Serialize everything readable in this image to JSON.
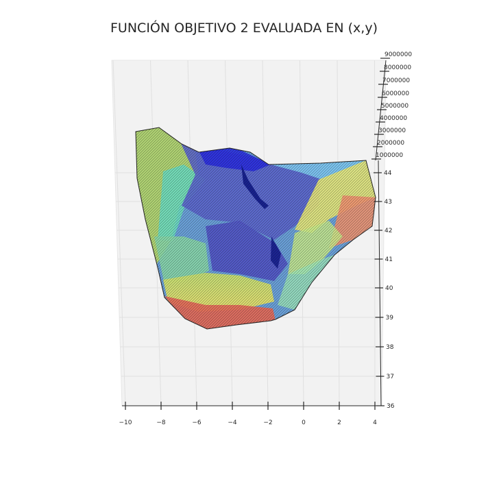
{
  "chart_data": {
    "type": "surface",
    "title": "FUNCIÓN OBJETIVO 2 EVALUADA EN (x,y)",
    "xlabel": "",
    "ylabel": "",
    "zlabel": "",
    "x_ticks": [
      "−10",
      "−8",
      "−6",
      "−4",
      "−2",
      "0",
      "2",
      "4"
    ],
    "y_ticks": [
      "36",
      "37",
      "38",
      "39",
      "40",
      "41",
      "42",
      "43",
      "44"
    ],
    "z_ticks": [
      "1000000",
      "2000000",
      "3000000",
      "4000000",
      "5000000",
      "6000000",
      "7000000",
      "8000000",
      "9000000"
    ],
    "xlim": [
      -10,
      4
    ],
    "ylim": [
      36,
      44
    ],
    "zlim": [
      0,
      9000000
    ],
    "colormap": "jet",
    "colors": {
      "pane": "#f2f2f2",
      "grid": "#e0e0e0",
      "axis": "#262626",
      "mesh_line": "#1a1a1a"
    },
    "surface_regions": [
      {
        "level": "low",
        "color": "#2a3bd8"
      },
      {
        "level": "low-mid",
        "color": "#4f7fd0"
      },
      {
        "level": "mid",
        "color": "#5fd6c8"
      },
      {
        "level": "mid-high",
        "color": "#b8e070"
      },
      {
        "level": "high",
        "color": "#f6e05a"
      },
      {
        "level": "max",
        "color": "#ea5a4a"
      }
    ]
  }
}
